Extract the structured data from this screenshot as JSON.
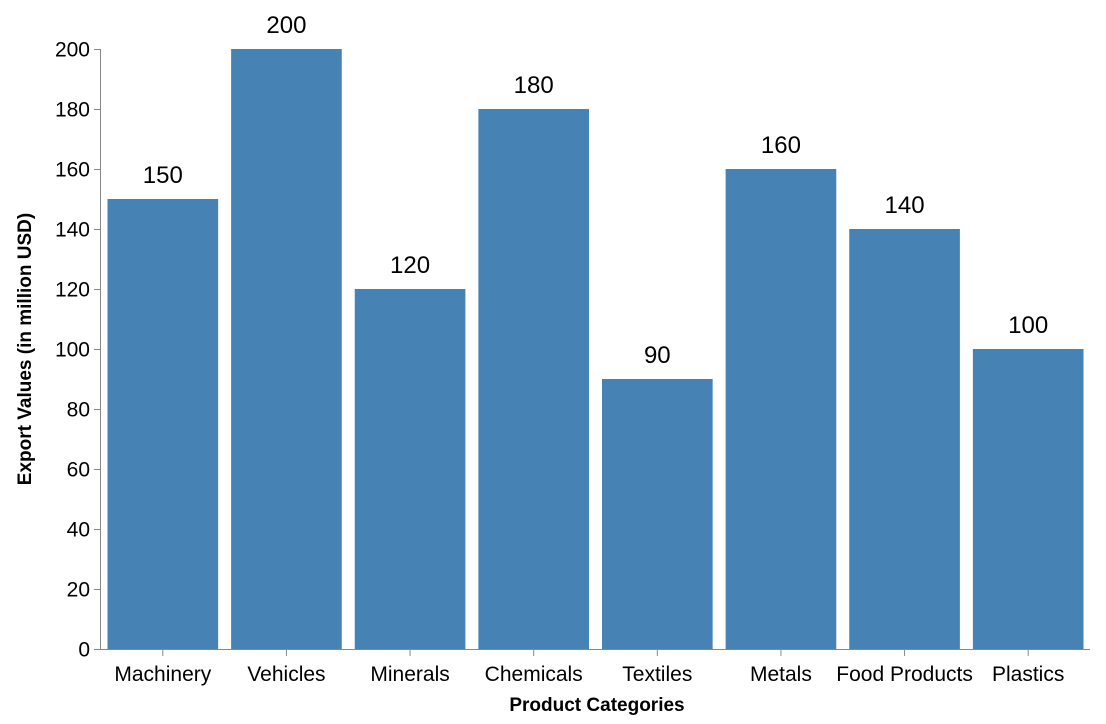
{
  "chart_data": {
    "type": "bar",
    "title": "",
    "categories": [
      "Machinery",
      "Vehicles",
      "Minerals",
      "Chemicals",
      "Textiles",
      "Metals",
      "Food Products",
      "Plastics"
    ],
    "values": [
      150,
      200,
      120,
      180,
      90,
      160,
      140,
      100
    ],
    "xlabel": "Product Categories",
    "ylabel": "Export Values (in million USD)",
    "ylim": [
      0,
      200
    ],
    "yticks": [
      0,
      20,
      40,
      60,
      80,
      100,
      120,
      140,
      160,
      180,
      200
    ],
    "grid": false,
    "legend": "none",
    "data_labels": true,
    "colors": {
      "bar": "#4682b4",
      "axis": "#888888",
      "text": "#000000"
    }
  }
}
